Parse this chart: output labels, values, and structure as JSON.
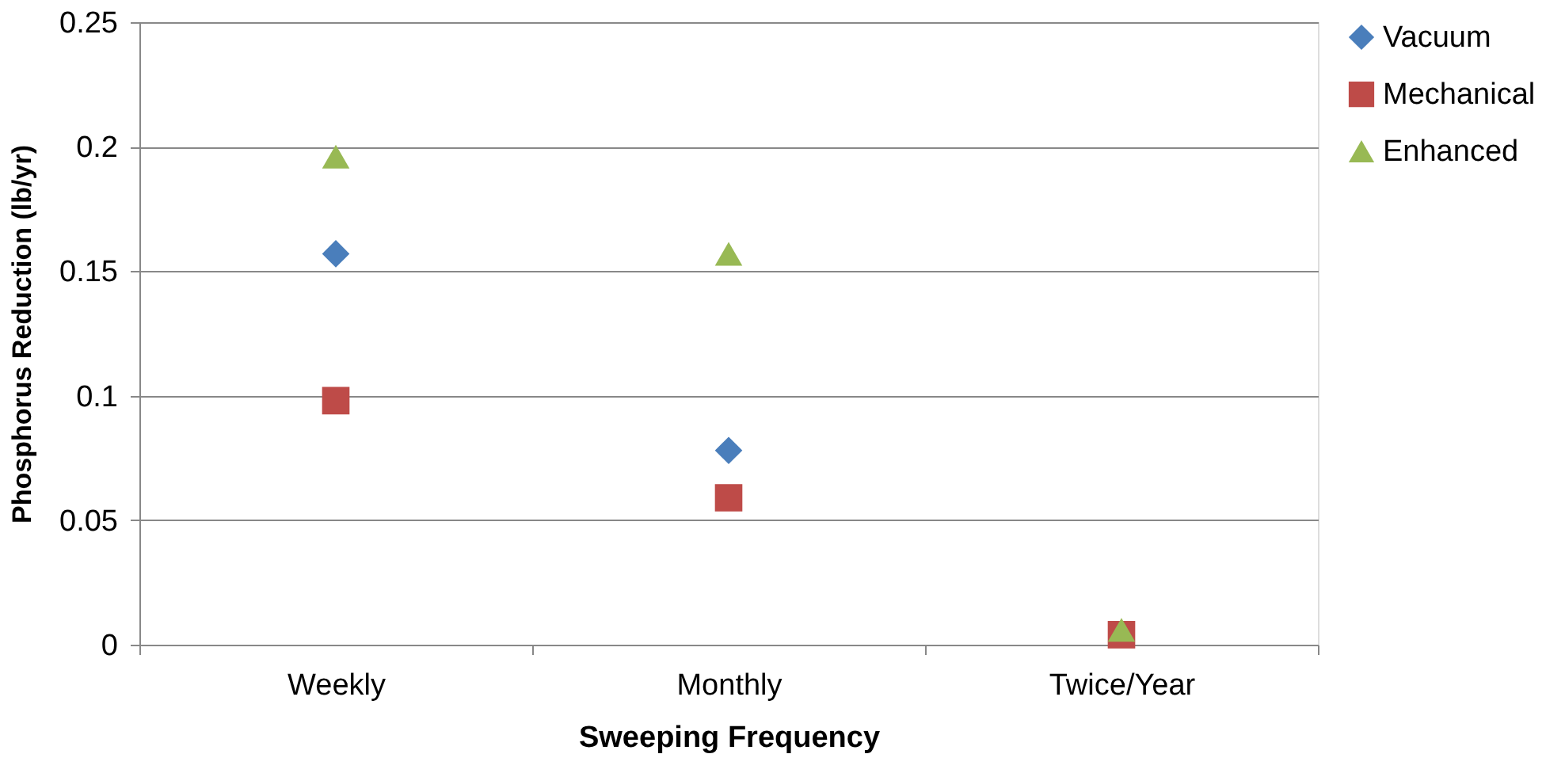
{
  "chart_data": {
    "type": "scatter",
    "xlabel": "Sweeping Frequency",
    "ylabel": "Phosphorus Reduction (lb/yr)",
    "categories": [
      "Weekly",
      "Monthly",
      "Twice/Year"
    ],
    "series": [
      {
        "name": "Vacuum",
        "color": "#4a7ebb",
        "marker": "diamond",
        "values": [
          0.157,
          0.078,
          null
        ]
      },
      {
        "name": "Mechanical",
        "color": "#be4b48",
        "marker": "square",
        "values": [
          0.098,
          0.059,
          0.004
        ]
      },
      {
        "name": "Enhanced",
        "color": "#98b954",
        "marker": "triangle",
        "values": [
          0.196,
          0.157,
          0.006
        ]
      }
    ],
    "ylim": [
      0,
      0.25
    ],
    "yticks": [
      0,
      0.05,
      0.1,
      0.15,
      0.2,
      0.25
    ],
    "grid": "y",
    "legend": "right"
  }
}
